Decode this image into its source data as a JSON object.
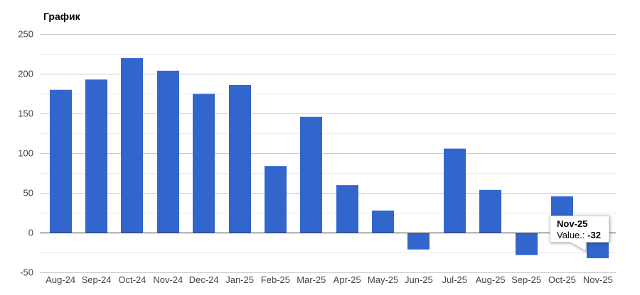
{
  "chart_data": {
    "type": "bar",
    "title": "График",
    "categories": [
      "Aug-24",
      "Sep-24",
      "Oct-24",
      "Nov-24",
      "Dec-24",
      "Jan-25",
      "Feb-25",
      "Mar-25",
      "Apr-25",
      "May-25",
      "Jun-25",
      "Jul-25",
      "Aug-25",
      "Sep-25",
      "Oct-25",
      "Nov-25"
    ],
    "values": [
      180,
      193,
      220,
      204,
      175,
      186,
      84,
      146,
      60,
      28,
      -21,
      106,
      54,
      -28,
      46,
      -32
    ],
    "xlabel": "",
    "ylabel": "",
    "ylim": [
      -50,
      250
    ],
    "y_major_ticks": [
      250,
      200,
      150,
      100,
      50,
      0,
      -50
    ],
    "y_minor_ticks": [
      225,
      175,
      125,
      75,
      25,
      -25
    ],
    "grid": true,
    "legend": "none"
  },
  "tooltip": {
    "category": "Nov-25",
    "value_label": "Value.:",
    "value": -32,
    "value_text": "-32"
  },
  "colors": {
    "bar": "#3366cc",
    "grid_major": "#cccccc",
    "grid_minor": "#ebebeb",
    "baseline": "#333333",
    "axis_label": "#444444",
    "title": "#000000",
    "tooltip_bg": "#ffffff",
    "tooltip_border": "#cccccc"
  }
}
